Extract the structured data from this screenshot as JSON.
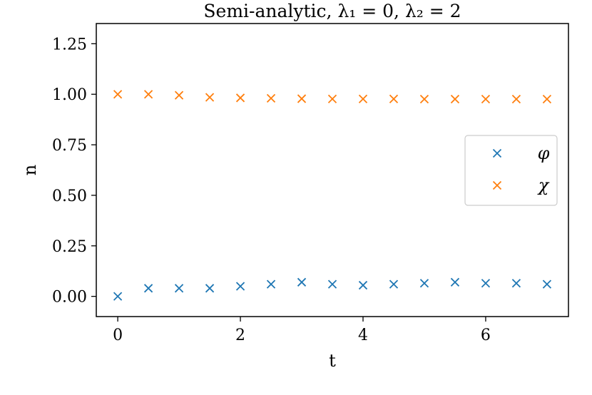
{
  "chart_data": {
    "type": "scatter",
    "title": "Semi-analytic, λ₁ = 0, λ₂ = 2",
    "xlabel": "t",
    "ylabel": "n",
    "xlim": [
      -0.35,
      7.35
    ],
    "ylim": [
      -0.1,
      1.35
    ],
    "xticks": [
      0,
      2,
      4,
      6
    ],
    "xtick_labels": [
      "0",
      "2",
      "4",
      "6"
    ],
    "yticks": [
      0.0,
      0.25,
      0.5,
      0.75,
      1.0,
      1.25
    ],
    "ytick_labels": [
      "0.00",
      "0.25",
      "0.50",
      "0.75",
      "1.00",
      "1.25"
    ],
    "grid": false,
    "legend_position": "center-right",
    "marker": "x",
    "x": [
      0,
      0.5,
      1,
      1.5,
      2,
      2.5,
      3,
      3.5,
      4,
      4.5,
      5,
      5.5,
      6,
      6.5,
      7
    ],
    "series": [
      {
        "name": "φ",
        "color": "#1f77b4",
        "values": [
          0.0,
          0.04,
          0.04,
          0.04,
          0.05,
          0.06,
          0.07,
          0.06,
          0.055,
          0.06,
          0.065,
          0.07,
          0.065,
          0.065,
          0.06
        ]
      },
      {
        "name": "χ",
        "color": "#ff7f0e",
        "values": [
          1.0,
          1.0,
          0.995,
          0.985,
          0.982,
          0.98,
          0.978,
          0.977,
          0.977,
          0.977,
          0.976,
          0.976,
          0.976,
          0.976,
          0.976
        ]
      }
    ]
  }
}
